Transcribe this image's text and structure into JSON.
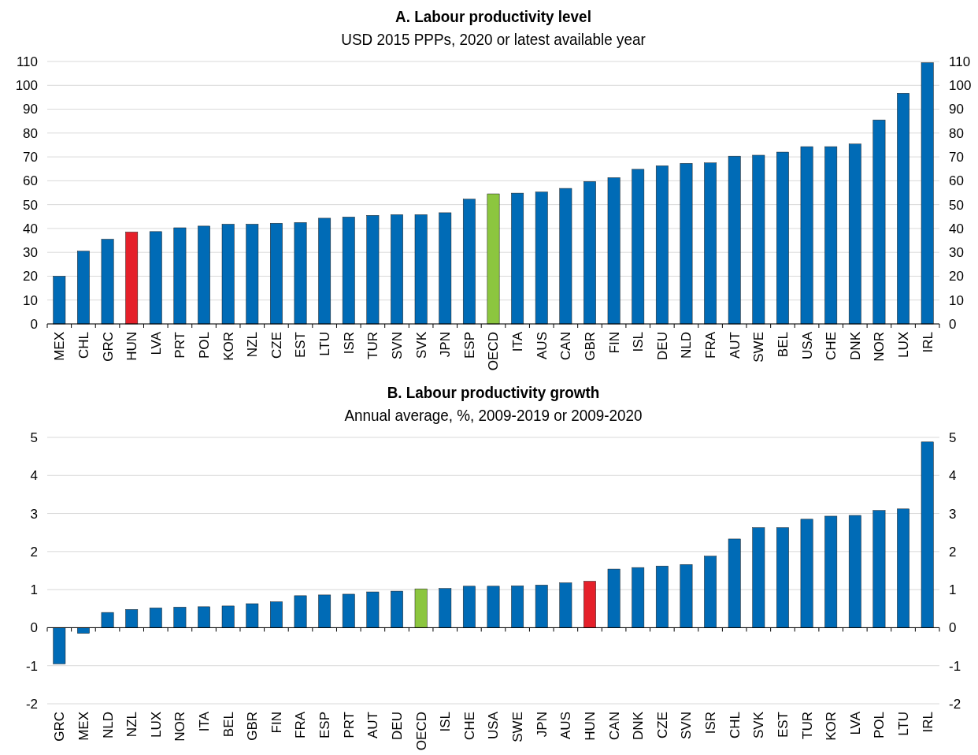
{
  "chart_data": [
    {
      "type": "bar",
      "title": "A. Labour productivity level",
      "subtitle": "USD 2015 PPPs, 2020 or latest available year",
      "categories": [
        "MEX",
        "CHL",
        "GRC",
        "HUN",
        "LVA",
        "PRT",
        "POL",
        "KOR",
        "NZL",
        "CZE",
        "EST",
        "LTU",
        "ISR",
        "TUR",
        "SVN",
        "SVK",
        "JPN",
        "ESP",
        "OECD",
        "ITA",
        "AUS",
        "CAN",
        "GBR",
        "FIN",
        "ISL",
        "DEU",
        "NLD",
        "FRA",
        "AUT",
        "SWE",
        "BEL",
        "USA",
        "CHE",
        "DNK",
        "NOR",
        "LUX",
        "IRL"
      ],
      "values": [
        20,
        30.5,
        35.5,
        38.5,
        38.7,
        40.3,
        41,
        41.8,
        41.8,
        42.2,
        42.5,
        44.3,
        44.8,
        45.5,
        45.8,
        45.8,
        46.6,
        52.3,
        54.5,
        54.8,
        55.3,
        56.8,
        59.7,
        61.3,
        64.8,
        66.3,
        67.3,
        67.5,
        70.3,
        70.7,
        72,
        74.3,
        74.3,
        75.4,
        85.5,
        96.7,
        109.5
      ],
      "colors": [
        "#006bb6",
        "#006bb6",
        "#006bb6",
        "#e5202a",
        "#006bb6",
        "#006bb6",
        "#006bb6",
        "#006bb6",
        "#006bb6",
        "#006bb6",
        "#006bb6",
        "#006bb6",
        "#006bb6",
        "#006bb6",
        "#006bb6",
        "#006bb6",
        "#006bb6",
        "#006bb6",
        "#8cc63f",
        "#006bb6",
        "#006bb6",
        "#006bb6",
        "#006bb6",
        "#006bb6",
        "#006bb6",
        "#006bb6",
        "#006bb6",
        "#006bb6",
        "#006bb6",
        "#006bb6",
        "#006bb6",
        "#006bb6",
        "#006bb6",
        "#006bb6",
        "#006bb6",
        "#006bb6",
        "#006bb6"
      ],
      "ylim": [
        0,
        110
      ],
      "yticks": [
        0,
        10,
        20,
        30,
        40,
        50,
        60,
        70,
        80,
        90,
        100,
        110
      ],
      "y2lim": [
        0,
        110
      ],
      "y2ticks": [
        0,
        10,
        20,
        30,
        40,
        50,
        60,
        70,
        80,
        90,
        100,
        110
      ],
      "grid": "y"
    },
    {
      "type": "bar",
      "title": "B. Labour productivity growth",
      "subtitle": "Annual average, %, 2009-2019 or 2009-2020",
      "categories": [
        "GRC",
        "MEX",
        "NLD",
        "NZL",
        "LUX",
        "NOR",
        "ITA",
        "BEL",
        "GBR",
        "FIN",
        "FRA",
        "ESP",
        "PRT",
        "AUT",
        "DEU",
        "OECD",
        "ISL",
        "CHE",
        "USA",
        "SWE",
        "JPN",
        "AUS",
        "HUN",
        "CAN",
        "DNK",
        "CZE",
        "SVN",
        "ISR",
        "CHL",
        "SVK",
        "EST",
        "TUR",
        "KOR",
        "LVA",
        "POL",
        "LTU",
        "IRL"
      ],
      "values": [
        -0.95,
        -0.15,
        0.4,
        0.48,
        0.52,
        0.54,
        0.55,
        0.57,
        0.63,
        0.68,
        0.84,
        0.86,
        0.88,
        0.94,
        0.96,
        1.02,
        1.03,
        1.09,
        1.09,
        1.1,
        1.12,
        1.18,
        1.22,
        1.54,
        1.58,
        1.62,
        1.66,
        1.88,
        2.33,
        2.63,
        2.63,
        2.85,
        2.93,
        2.95,
        3.08,
        3.12,
        4.88
      ],
      "colors": [
        "#006bb6",
        "#006bb6",
        "#006bb6",
        "#006bb6",
        "#006bb6",
        "#006bb6",
        "#006bb6",
        "#006bb6",
        "#006bb6",
        "#006bb6",
        "#006bb6",
        "#006bb6",
        "#006bb6",
        "#006bb6",
        "#006bb6",
        "#8cc63f",
        "#006bb6",
        "#006bb6",
        "#006bb6",
        "#006bb6",
        "#006bb6",
        "#006bb6",
        "#e5202a",
        "#006bb6",
        "#006bb6",
        "#006bb6",
        "#006bb6",
        "#006bb6",
        "#006bb6",
        "#006bb6",
        "#006bb6",
        "#006bb6",
        "#006bb6",
        "#006bb6",
        "#006bb6",
        "#006bb6",
        "#006bb6"
      ],
      "ylim": [
        -2,
        5
      ],
      "yticks": [
        -2,
        -1,
        0,
        1,
        2,
        3,
        4,
        5
      ],
      "y2lim": [
        -2,
        5
      ],
      "y2ticks": [
        -2,
        -1,
        0,
        1,
        2,
        3,
        4,
        5
      ],
      "grid": "y"
    }
  ]
}
